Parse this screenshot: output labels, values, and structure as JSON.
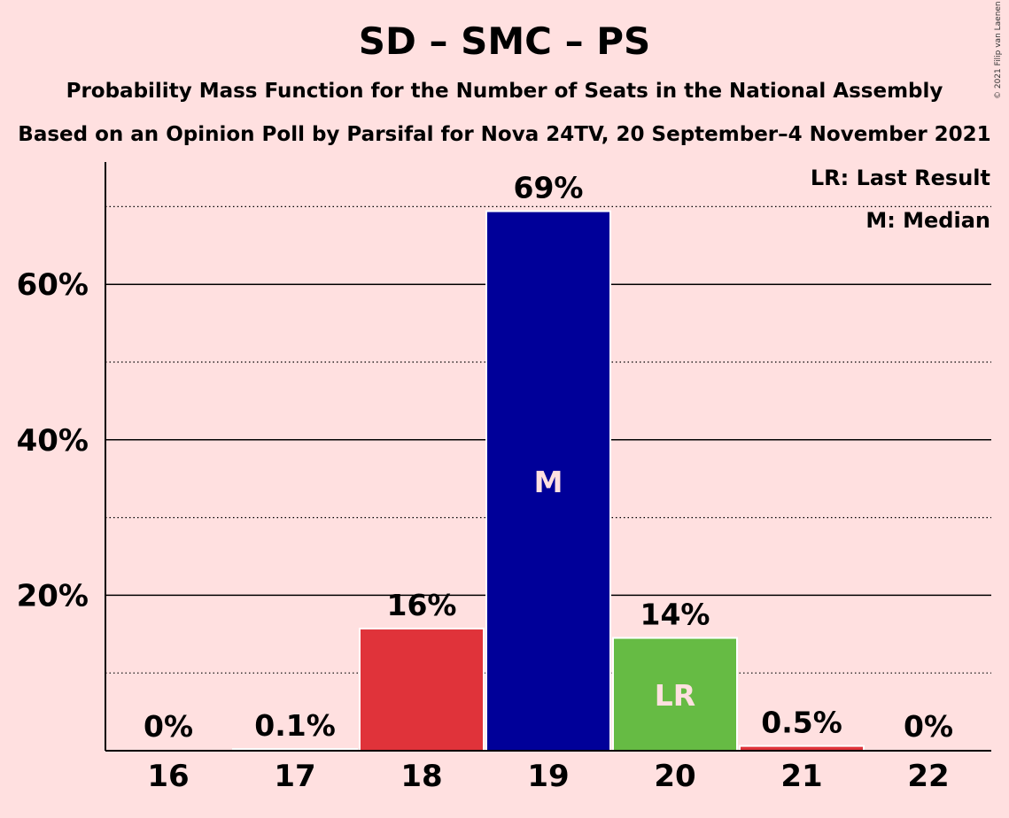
{
  "title": "SD – SMC – PS",
  "subtitle": "Probability Mass Function for the Number of Seats in the National Assembly",
  "subtitle2": "Based on an Opinion Poll by Parsifal for Nova 24TV, 20 September–4 November 2021",
  "copyright": "© 2021 Filip van Laenen",
  "legend": {
    "last_result": "LR: Last Result",
    "median": "M: Median"
  },
  "colors": {
    "background": "#FFE0E0",
    "bar_default": "#E0333A",
    "bar_median": "#000099",
    "bar_last_result": "#66BB44"
  },
  "chart_data": {
    "type": "bar",
    "categories": [
      "16",
      "17",
      "18",
      "19",
      "20",
      "21",
      "22"
    ],
    "values": [
      0,
      0.1,
      15.6,
      69.3,
      14.4,
      0.5,
      0
    ],
    "value_labels": [
      "0%",
      "0.1%",
      "16%",
      "69%",
      "14%",
      "0.5%",
      "0%"
    ],
    "bar_marks": [
      "",
      "",
      "",
      "M",
      "LR",
      "",
      ""
    ],
    "median_category": "19",
    "last_result_category": "20",
    "ylim": [
      0,
      75
    ],
    "yticks": [
      20,
      40,
      60
    ],
    "ytick_labels": [
      "20%",
      "40%",
      "60%"
    ],
    "minor_gridlines": [
      10,
      30,
      50,
      70
    ],
    "legend_position": "top-right"
  }
}
